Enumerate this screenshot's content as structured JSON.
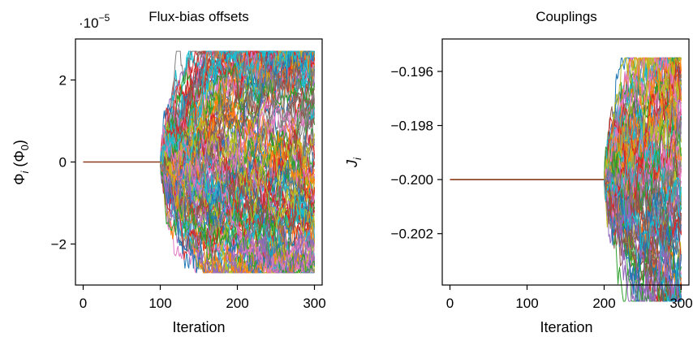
{
  "chart_data": [
    {
      "type": "line",
      "title": "Flux-bias offsets",
      "xlabel": "Iteration",
      "ylabel": "Φi (Φ0)",
      "ylabel_main": "Φ",
      "ylabel_sub": "i",
      "ylabel_paren_open": " (Φ",
      "ylabel_paren_sub": "0",
      "ylabel_paren_close": ")",
      "scale_multiplier": "·10",
      "scale_exponent": "−5",
      "xlim": [
        -10,
        310
      ],
      "ylim": [
        -3.0,
        3.0
      ],
      "xticks": [
        0,
        100,
        200,
        300
      ],
      "xtick_labels": [
        "0",
        "100",
        "200",
        "300"
      ],
      "yticks": [
        -2,
        0,
        2
      ],
      "ytick_labels": [
        "−2",
        "0",
        "2"
      ],
      "constant_until": 100,
      "constant_value": 0,
      "constant_color": "#8c3b1a",
      "x_end": 300,
      "series_count": 120,
      "spread_at_end": 2.5,
      "max_abs": 2.7
    },
    {
      "type": "line",
      "title": "Couplings",
      "xlabel": "Iteration",
      "ylabel": "Ji",
      "ylabel_main": "J",
      "ylabel_sub": "i",
      "xlim": [
        -10,
        310
      ],
      "ylim": [
        -0.2039,
        -0.1948
      ],
      "xticks": [
        0,
        100,
        200,
        300
      ],
      "xtick_labels": [
        "0",
        "100",
        "200",
        "300"
      ],
      "yticks": [
        -0.196,
        -0.198,
        -0.2,
        -0.202
      ],
      "ytick_labels": [
        "−0.196",
        "−0.198",
        "−0.200",
        "−0.202"
      ],
      "constant_until": 200,
      "constant_value": -0.2,
      "constant_color": "#8c3b1a",
      "x_end": 300,
      "series_count": 110,
      "spread_at_end": 0.0035,
      "max_abs": 0.0045
    }
  ],
  "palette": [
    "#1f77b4",
    "#ff7f0e",
    "#2ca02c",
    "#d62728",
    "#9467bd",
    "#8c564b",
    "#e377c2",
    "#7f7f7f",
    "#bcbd22",
    "#17becf"
  ]
}
